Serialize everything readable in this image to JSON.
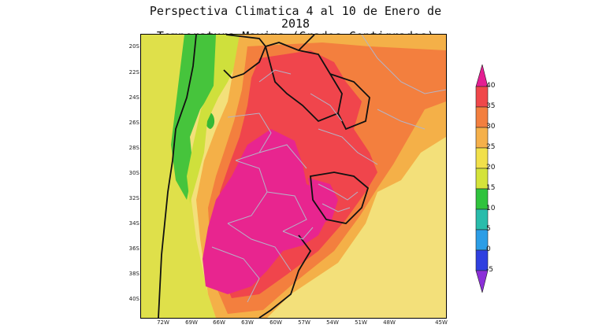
{
  "title": {
    "line1": "Perspectiva Climatica 4 al 10 de Enero de 2018",
    "line2": "Temperatura Maxima (Grados Centigrados)"
  },
  "map": {
    "lat_ticks": [
      "20S",
      "22S",
      "24S",
      "26S",
      "28S",
      "30S",
      "32S",
      "34S",
      "36S",
      "38S",
      "40S"
    ],
    "lon_ticks": [
      "72W",
      "69W",
      "66W",
      "63W",
      "60W",
      "57W",
      "54W",
      "51W",
      "48W",
      "45W"
    ],
    "colors": {
      "background": "#f3e07a",
      "yellow_green": "#d9e03c",
      "green": "#3ac23a",
      "orange_light": "#f4b048",
      "orange": "#f37f3e",
      "red": "#f0454c",
      "magenta": "#e8258f",
      "border": "#111111",
      "province_line": "#b4b4c8"
    }
  },
  "legend": {
    "ticks": [
      "40",
      "35",
      "30",
      "25",
      "20",
      "15",
      "10",
      "5",
      "0",
      "-5"
    ],
    "colors": [
      "#e41e92",
      "#f0474a",
      "#f37f3f",
      "#f5b04a",
      "#f1e04a",
      "#d4e33a",
      "#2fc33d",
      "#29bcab",
      "#2b9de6",
      "#2f3fe0",
      "#8b2fd8"
    ]
  }
}
